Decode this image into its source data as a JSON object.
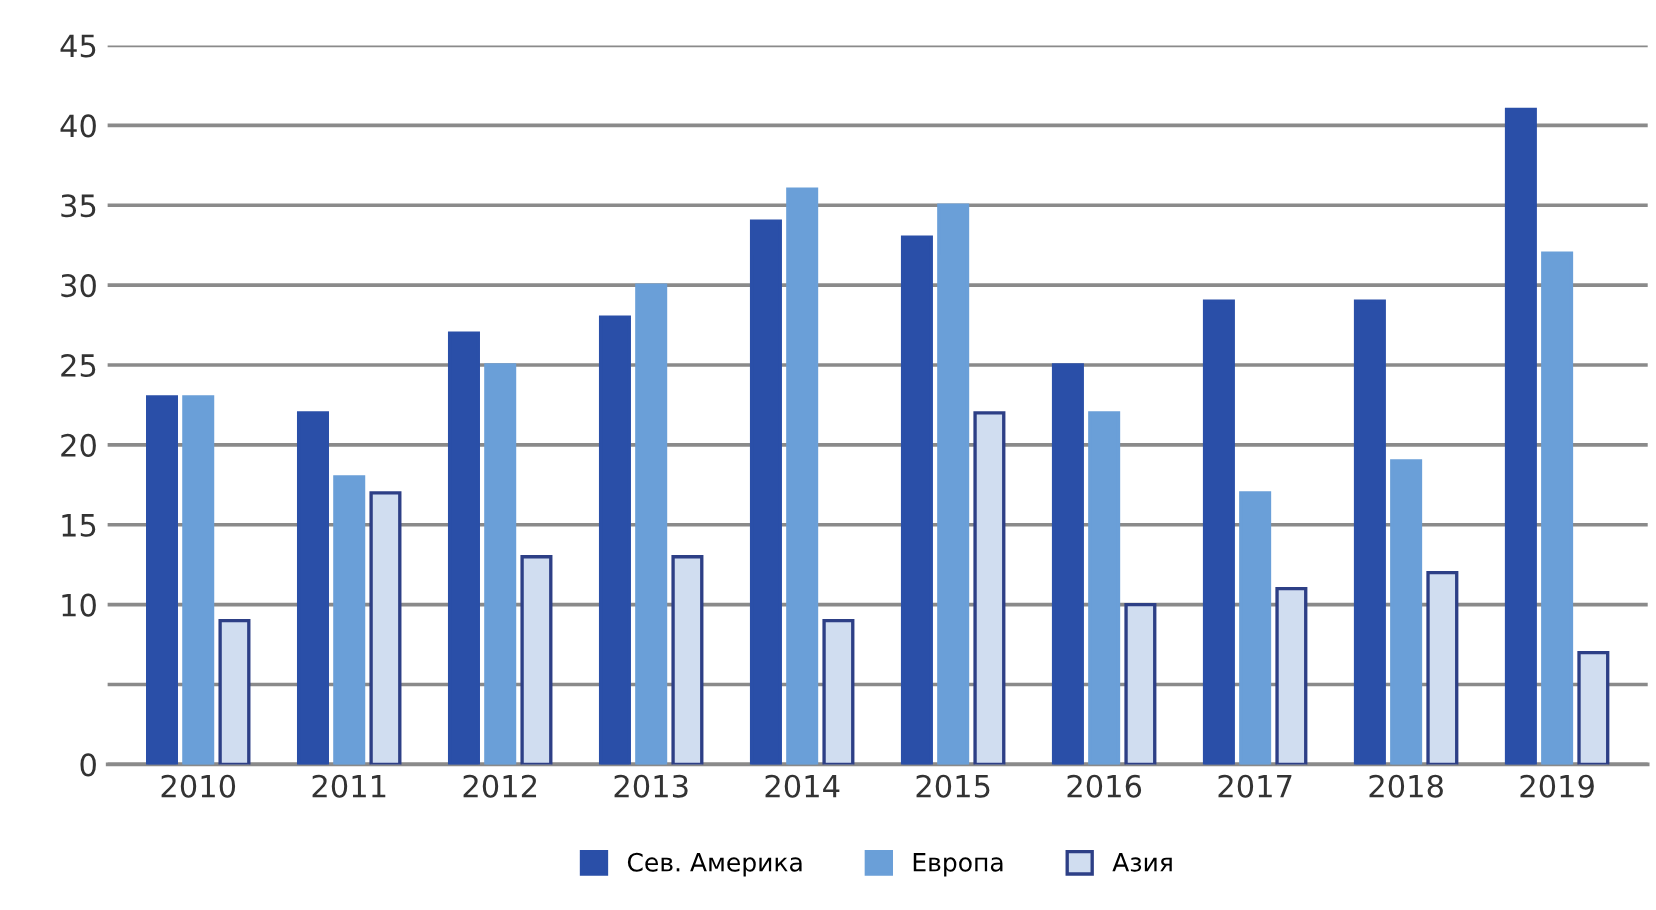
{
  "chart_data": {
    "type": "bar",
    "categories": [
      "2010",
      "2011",
      "2012",
      "2013",
      "2014",
      "2015",
      "2016",
      "2017",
      "2018",
      "2019"
    ],
    "series": [
      {
        "name": "Сев. Америка",
        "color": "#2a4fa8",
        "values": [
          23,
          22,
          27,
          28,
          34,
          33,
          25,
          29,
          29,
          41
        ]
      },
      {
        "name": "Европа",
        "color": "#6a9fd8",
        "values": [
          23,
          18,
          25,
          30,
          36,
          35,
          22,
          17,
          19,
          32
        ]
      },
      {
        "name": "Азия",
        "color": "#d0ddf0",
        "values": [
          9,
          17,
          13,
          13,
          9,
          22,
          10,
          11,
          12,
          7
        ]
      }
    ],
    "ylim": [
      0,
      45
    ],
    "yticks": [
      0,
      {
        "value": 5,
        "label": null
      },
      10,
      15,
      20,
      25,
      30,
      35,
      40,
      45
    ],
    "grid": "y",
    "legend": "bottom"
  }
}
